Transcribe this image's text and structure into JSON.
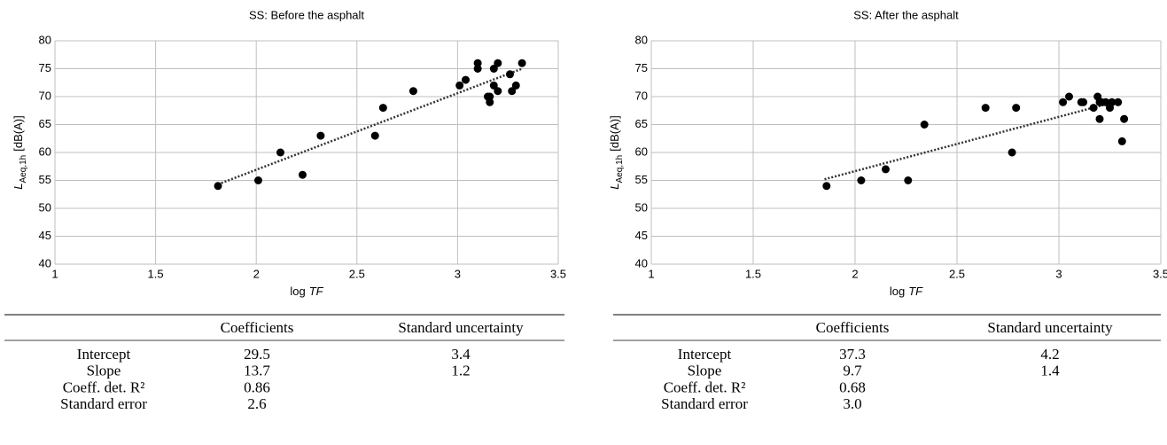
{
  "chart_data": [
    {
      "type": "scatter",
      "title": "SS: Before the asphalt",
      "xlabel": {
        "text": "log",
        "symbol": "TF"
      },
      "ylabel": {
        "symbol": "L",
        "subscript": "Aeq,1h",
        "unit": "[dB(A)]"
      },
      "x": [
        1.81,
        2.01,
        2.12,
        2.23,
        2.32,
        2.59,
        2.63,
        2.78,
        3.01,
        3.04,
        3.1,
        3.1,
        3.15,
        3.16,
        3.16,
        3.18,
        3.18,
        3.2,
        3.2,
        3.26,
        3.27,
        3.29,
        3.32
      ],
      "y": [
        54,
        55,
        60,
        56,
        63,
        63,
        68,
        71,
        72,
        73,
        76,
        75,
        70,
        69,
        70,
        72,
        75,
        71,
        76,
        74,
        71,
        72,
        76
      ],
      "color": "#000000",
      "trendline": {
        "x": [
          1.81,
          3.32
        ],
        "y": [
          54.3,
          75.0
        ]
      },
      "xlim": [
        1,
        3.5
      ],
      "ylim": [
        40,
        80
      ],
      "xticks": [
        1,
        1.5,
        2,
        2.5,
        3,
        3.5
      ],
      "yticks": [
        40,
        45,
        50,
        55,
        60,
        65,
        70,
        75,
        80
      ],
      "grid": true
    },
    {
      "type": "scatter",
      "title": "SS: After the asphalt",
      "xlabel": {
        "text": "log",
        "symbol": "TF"
      },
      "ylabel": {
        "symbol": "L",
        "subscript": "Aeq,1h",
        "unit": "[dB(A)]"
      },
      "x": [
        1.86,
        2.03,
        2.15,
        2.26,
        2.34,
        2.64,
        2.77,
        2.79,
        3.02,
        3.05,
        3.11,
        3.12,
        3.17,
        3.19,
        3.2,
        3.2,
        3.21,
        3.23,
        3.25,
        3.26,
        3.29,
        3.31,
        3.32
      ],
      "y": [
        54,
        55,
        57,
        55,
        65,
        68,
        60,
        68,
        69,
        70,
        69,
        69,
        68,
        70,
        69,
        66,
        69,
        69,
        68,
        69,
        69,
        62,
        66
      ],
      "color": "#000000",
      "trendline": {
        "x": [
          1.85,
          3.3
        ],
        "y": [
          55.2,
          69.3
        ]
      },
      "xlim": [
        1,
        3.5
      ],
      "ylim": [
        40,
        80
      ],
      "xticks": [
        1,
        1.5,
        2,
        2.5,
        3,
        3.5
      ],
      "yticks": [
        40,
        45,
        50,
        55,
        60,
        65,
        70,
        75,
        80
      ],
      "grid": true
    }
  ],
  "tables": [
    {
      "header": [
        "Coefficients",
        "Standard uncertainty"
      ],
      "rows": [
        {
          "label": "Intercept",
          "values": [
            "29.5",
            "3.4"
          ]
        },
        {
          "label": "Slope",
          "values": [
            "13.7",
            "1.2"
          ]
        },
        {
          "label": "Coeff. det. R²",
          "values": [
            "0.86"
          ]
        },
        {
          "label": "Standard error",
          "values": [
            "2.6"
          ]
        }
      ]
    },
    {
      "header": [
        "Coefficients",
        "Standard uncertainty"
      ],
      "rows": [
        {
          "label": "Intercept",
          "values": [
            "37.3",
            "4.2"
          ]
        },
        {
          "label": "Slope",
          "values": [
            "9.7",
            "1.4"
          ]
        },
        {
          "label": "Coeff. det. R²",
          "values": [
            "0.68"
          ]
        },
        {
          "label": "Standard error",
          "values": [
            "3.0"
          ]
        }
      ]
    }
  ]
}
